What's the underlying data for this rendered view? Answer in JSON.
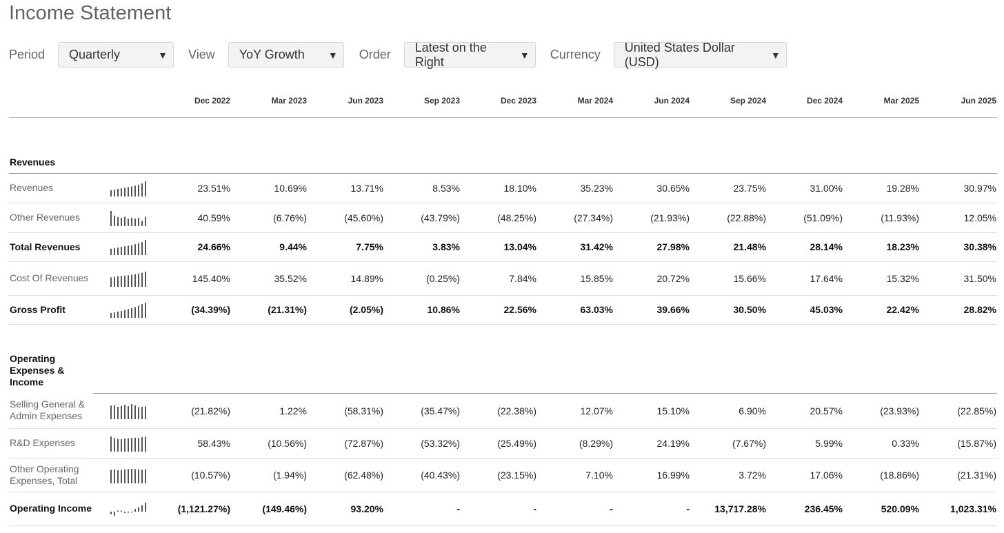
{
  "page": {
    "title": "Income Statement"
  },
  "filters": [
    {
      "label": "Period",
      "value": "Quarterly"
    },
    {
      "label": "View",
      "value": "YoY Growth"
    },
    {
      "label": "Order",
      "value": "Latest on the Right"
    },
    {
      "label": "Currency",
      "value": "United States Dollar (USD)"
    }
  ],
  "columns": [
    "Dec 2022",
    "Mar 2023",
    "Jun 2023",
    "Sep 2023",
    "Dec 2023",
    "Mar 2024",
    "Jun 2024",
    "Sep 2024",
    "Dec 2024",
    "Mar 2025",
    "Jun 2025"
  ],
  "sections": [
    {
      "title": "Revenues",
      "rows": [
        {
          "label": "Revenues",
          "bold": false,
          "spark": [
            0.42,
            0.46,
            0.5,
            0.54,
            0.58,
            0.62,
            0.66,
            0.72,
            0.78,
            0.86,
            1.0
          ],
          "values": [
            "23.51%",
            "10.69%",
            "13.71%",
            "8.53%",
            "18.10%",
            "35.23%",
            "30.65%",
            "23.75%",
            "31.00%",
            "19.28%",
            "30.97%"
          ]
        },
        {
          "label": "Other Revenues",
          "bold": false,
          "spark": [
            1.0,
            0.7,
            0.6,
            0.55,
            0.62,
            0.5,
            0.55,
            0.5,
            0.55,
            0.35,
            0.62
          ],
          "values": [
            "40.59%",
            "(6.76%)",
            "(45.60%)",
            "(43.79%)",
            "(48.25%)",
            "(27.34%)",
            "(21.93%)",
            "(22.88%)",
            "(51.09%)",
            "(11.93%)",
            "12.05%"
          ]
        },
        {
          "label": "Total Revenues",
          "bold": true,
          "spark": [
            0.42,
            0.46,
            0.5,
            0.54,
            0.58,
            0.62,
            0.66,
            0.72,
            0.78,
            0.86,
            1.0
          ],
          "values": [
            "24.66%",
            "9.44%",
            "7.75%",
            "3.83%",
            "13.04%",
            "31.42%",
            "27.98%",
            "21.48%",
            "28.14%",
            "18.23%",
            "30.38%"
          ]
        },
        {
          "label": "Cost Of Revenues",
          "bold": false,
          "spark": [
            0.62,
            0.66,
            0.7,
            0.72,
            0.74,
            0.76,
            0.8,
            0.84,
            0.88,
            0.92,
            1.0
          ],
          "values": [
            "145.40%",
            "35.52%",
            "14.89%",
            "(0.25%)",
            "7.84%",
            "15.85%",
            "20.72%",
            "15.66%",
            "17.64%",
            "15.32%",
            "31.50%"
          ]
        },
        {
          "label": "Gross Profit",
          "bold": true,
          "spark": [
            0.32,
            0.36,
            0.42,
            0.46,
            0.52,
            0.58,
            0.64,
            0.72,
            0.8,
            0.9,
            1.0
          ],
          "values": [
            "(34.39%)",
            "(21.31%)",
            "(2.05%)",
            "10.86%",
            "22.56%",
            "63.03%",
            "39.66%",
            "30.50%",
            "45.03%",
            "22.42%",
            "28.82%"
          ]
        }
      ]
    },
    {
      "title": "Operating Expenses & Income",
      "rows": [
        {
          "label": "Selling General & Admin Expenses",
          "bold": false,
          "spark": [
            0.9,
            0.92,
            0.82,
            0.88,
            0.95,
            0.86,
            1.0,
            0.92,
            0.8,
            0.82,
            0.84
          ],
          "values": [
            "(21.82%)",
            "1.22%",
            "(58.31%)",
            "(35.47%)",
            "(22.38%)",
            "12.07%",
            "15.10%",
            "6.90%",
            "20.57%",
            "(23.93%)",
            "(22.85%)"
          ]
        },
        {
          "label": "R&D Expenses",
          "bold": false,
          "spark": [
            1.0,
            0.88,
            0.84,
            0.82,
            0.86,
            0.88,
            0.9,
            0.92,
            0.9,
            0.95,
            0.98
          ],
          "values": [
            "58.43%",
            "(10.56%)",
            "(72.87%)",
            "(53.32%)",
            "(25.49%)",
            "(8.29%)",
            "24.19%",
            "(7.67%)",
            "5.99%",
            "0.33%",
            "(15.87%)"
          ]
        },
        {
          "label": "Other Operating Expenses, Total",
          "bold": false,
          "spark": [
            0.9,
            0.92,
            0.86,
            0.88,
            0.92,
            0.94,
            0.96,
            0.94,
            0.92,
            0.9,
            0.92
          ],
          "values": [
            "(10.57%)",
            "(1.94%)",
            "(62.48%)",
            "(40.43%)",
            "(23.15%)",
            "7.10%",
            "16.99%",
            "3.72%",
            "17.06%",
            "(18.86%)",
            "(21.31%)"
          ]
        },
        {
          "label": "Operating Income",
          "bold": true,
          "spark": [
            -0.3,
            -0.45,
            0.12,
            0.0,
            -0.15,
            -0.1,
            -0.08,
            0.3,
            0.5,
            0.72,
            1.0
          ],
          "values": [
            "(1,121.27%)",
            "(149.46%)",
            "93.20%",
            "-",
            "-",
            "-",
            "-",
            "13,717.28%",
            "236.45%",
            "520.09%",
            "1,023.31%"
          ]
        }
      ]
    }
  ],
  "colors": {
    "title": "#5f6368",
    "label": "#666666",
    "select_bg": "#f1f3f4",
    "spark": "#555555"
  }
}
